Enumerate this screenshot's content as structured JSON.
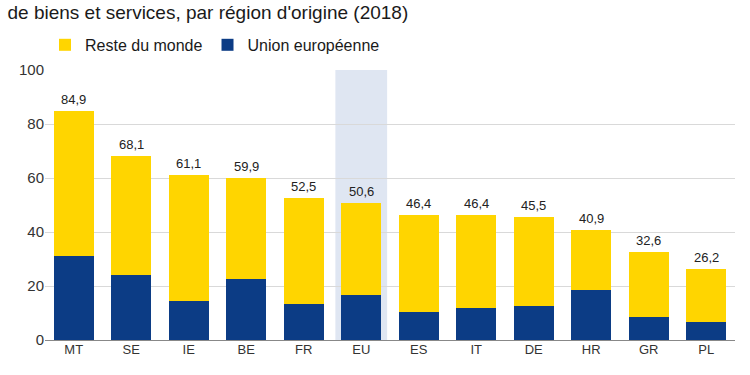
{
  "chart_data": {
    "type": "bar",
    "title": "de biens et services, par région d'origine (2018)",
    "categories": [
      "MT",
      "SE",
      "IE",
      "BE",
      "FR",
      "EU",
      "ES",
      "IT",
      "DE",
      "HR",
      "GR",
      "PL"
    ],
    "series": [
      {
        "name": "Union européenne",
        "color": "#0c3c85",
        "values": [
          31,
          24,
          14.5,
          22.7,
          13.2,
          16.8,
          10.3,
          12,
          12.7,
          18.7,
          8.7,
          6.8
        ]
      },
      {
        "name": "Reste du monde",
        "color": "#ffd500",
        "values": [
          53.9,
          44.1,
          46.6,
          37.2,
          39.3,
          33.8,
          36.1,
          34.4,
          32.8,
          22.2,
          23.9,
          19.4
        ]
      }
    ],
    "totals": [
      84.9,
      68.1,
      61.1,
      59.9,
      52.5,
      50.6,
      46.4,
      46.4,
      45.5,
      40.9,
      32.6,
      26.2
    ],
    "total_labels": [
      "84,9",
      "68,1",
      "61,1",
      "59,9",
      "52,5",
      "50,6",
      "46,4",
      "46,4",
      "45,5",
      "40,9",
      "32,6",
      "26,2"
    ],
    "ylim": [
      0,
      100
    ],
    "yticks": [
      0,
      20,
      40,
      60,
      80,
      100
    ],
    "grid": true,
    "stacked": true,
    "legend": "top left"
  }
}
